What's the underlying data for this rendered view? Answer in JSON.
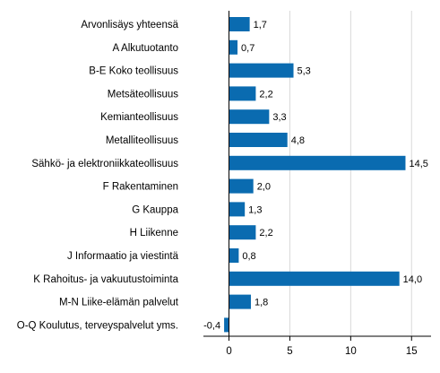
{
  "chart_data": {
    "type": "bar",
    "orientation": "horizontal",
    "title": "",
    "xlabel": "",
    "ylabel": "",
    "categories": [
      "Arvonlisäys yhteensä",
      "A Alkutuotanto",
      "B-E Koko teollisuus",
      "Metsäteollisuus",
      "Kemianteollisuus",
      "Metalliteollisuus",
      "Sähkö- ja elektroniikkateollisuus",
      "F Rakentaminen",
      "G Kauppa",
      "H Liikenne",
      "J Informaatio ja viestintä",
      "K Rahoitus- ja vakuutustoiminta",
      "M-N Liike-elämän palvelut",
      "O-Q Koulutus, terveyspalvelut yms."
    ],
    "values": [
      1.7,
      0.7,
      5.3,
      2.2,
      3.3,
      4.8,
      14.5,
      2.0,
      1.3,
      2.2,
      0.8,
      14.0,
      1.8,
      -0.4
    ],
    "value_labels": [
      "1,7",
      "0,7",
      "5,3",
      "2,2",
      "3,3",
      "4,8",
      "14,5",
      "2,0",
      "1,3",
      "2,2",
      "0,8",
      "14,0",
      "1,8",
      "-0,4"
    ],
    "xlim": [
      -2.1,
      16.6
    ],
    "x_ticks": [
      0,
      5,
      10,
      15
    ],
    "x_tick_labels": [
      "0",
      "5",
      "10",
      "15"
    ],
    "grid": "vertical",
    "legend": "none",
    "colors": {
      "bar": "#0a6bb0",
      "grid": "#d9d9d9",
      "axis": "#000000"
    }
  }
}
